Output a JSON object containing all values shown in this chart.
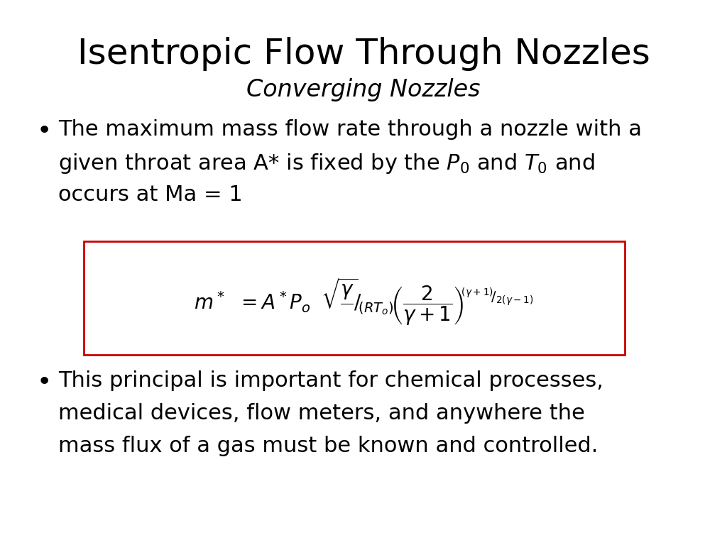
{
  "title": "Isentropic Flow Through Nozzles",
  "subtitle": "Converging Nozzles",
  "bullet1_line1": "The maximum mass flow rate through a nozzle with a",
  "bullet1_line2": "given throat area A* is fixed by the P₀ and T₀ and",
  "bullet1_line3": "occurs at Ma = 1",
  "bullet2_line1": "This principal is important for chemical processes,",
  "bullet2_line2": "medical devices, flow meters, and anywhere the",
  "bullet2_line3": "mass flux of a gas must be known and controlled.",
  "box_color": "#cc0000",
  "text_color": "#000000",
  "bg_color": "#ffffff",
  "title_fontsize": 36,
  "subtitle_fontsize": 24,
  "bullet_fontsize": 22,
  "formula_fontsize": 20
}
